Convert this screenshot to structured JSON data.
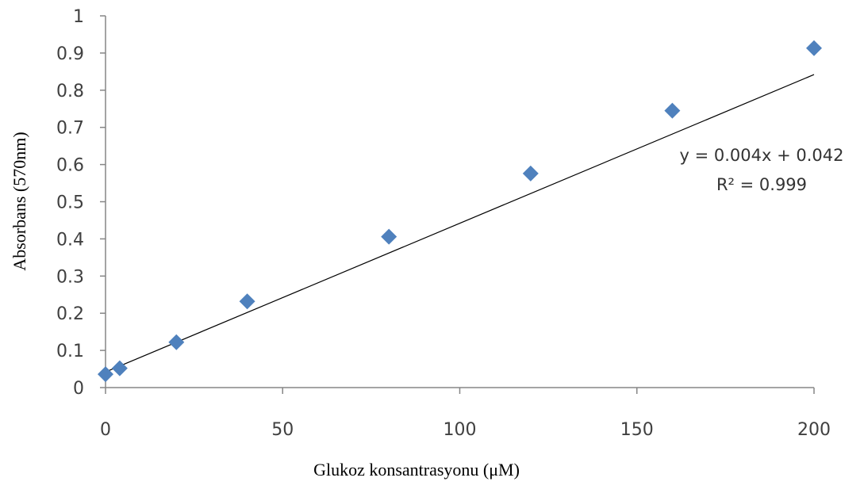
{
  "chart_data": {
    "type": "scatter",
    "title": "",
    "xlabel": "Glukoz konsantrasyonu (μM)",
    "ylabel": "Absorbans (570nm)",
    "xlim": [
      0,
      200
    ],
    "ylim": [
      0,
      1
    ],
    "x_ticks": [
      "0",
      "50",
      "100",
      "150",
      "200"
    ],
    "y_ticks": [
      "0",
      "0.1",
      "0.2",
      "0.3",
      "0.4",
      "0.5",
      "0.6",
      "0.7",
      "0.8",
      "0.9",
      "1"
    ],
    "grid": false,
    "legend": "none",
    "series": [
      {
        "marker": "diamond",
        "color": "#4f81bd",
        "points": [
          {
            "x": 0,
            "y": 0.036
          },
          {
            "x": 4,
            "y": 0.052
          },
          {
            "x": 20,
            "y": 0.122
          },
          {
            "x": 40,
            "y": 0.232
          },
          {
            "x": 80,
            "y": 0.406
          },
          {
            "x": 120,
            "y": 0.576
          },
          {
            "x": 160,
            "y": 0.745
          },
          {
            "x": 200,
            "y": 0.913
          }
        ]
      }
    ],
    "trendline": {
      "type": "linear",
      "color": "#000000",
      "slope": 0.004,
      "intercept": 0.042,
      "x_range": [
        0,
        200
      ],
      "equation_label": "y = 0.004x + 0.042",
      "r2_label": "R² = 0.999"
    },
    "axis_color": "#868686"
  }
}
